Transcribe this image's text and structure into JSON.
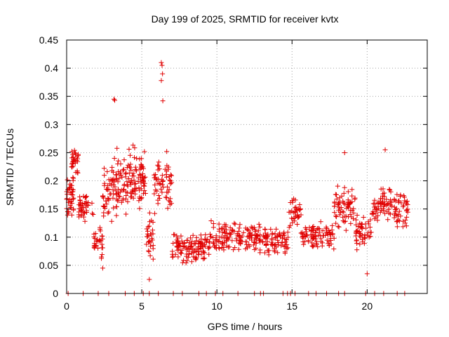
{
  "chart_data": {
    "type": "scatter",
    "title": "Day 199 of 2025, SRMTID for receiver kvtx",
    "xlabel": "GPS time / hours",
    "ylabel": "SRMTID / TECUs",
    "xlim": [
      0,
      24
    ],
    "ylim": [
      0,
      0.45
    ],
    "x_ticks": [
      0,
      5,
      10,
      15,
      20
    ],
    "x_tick_labels": [
      "0",
      "5",
      "10",
      "15",
      "20"
    ],
    "y_ticks": [
      0,
      0.05,
      0.1,
      0.15,
      0.2,
      0.25,
      0.3,
      0.35,
      0.4,
      0.45
    ],
    "y_tick_labels": [
      "0",
      "0.05",
      "0.1",
      "0.15",
      "0.2",
      "0.25",
      "0.3",
      "0.35",
      "0.4",
      "0.45"
    ],
    "grid": true,
    "marker": "+",
    "color": "#e00000",
    "series_profile": [
      {
        "x_start": 0.0,
        "x_end": 0.5,
        "center": 0.17,
        "spread": 0.05,
        "n": 40
      },
      {
        "x_start": 0.3,
        "x_end": 0.8,
        "center": 0.235,
        "spread": 0.04,
        "n": 30
      },
      {
        "x_start": 0.8,
        "x_end": 1.8,
        "center": 0.15,
        "spread": 0.04,
        "n": 45
      },
      {
        "x_start": 1.8,
        "x_end": 2.4,
        "center": 0.09,
        "spread": 0.04,
        "n": 30
      },
      {
        "x_start": 2.4,
        "x_end": 3.0,
        "center": 0.17,
        "spread": 0.06,
        "n": 35
      },
      {
        "x_start": 3.0,
        "x_end": 4.8,
        "center": 0.2,
        "spread": 0.08,
        "n": 110
      },
      {
        "x_start": 4.8,
        "x_end": 5.3,
        "center": 0.21,
        "spread": 0.08,
        "n": 40
      },
      {
        "x_start": 5.3,
        "x_end": 5.8,
        "center": 0.1,
        "spread": 0.06,
        "n": 30
      },
      {
        "x_start": 5.8,
        "x_end": 7.0,
        "center": 0.2,
        "spread": 0.07,
        "n": 60
      },
      {
        "x_start": 7.0,
        "x_end": 9.5,
        "center": 0.08,
        "spread": 0.035,
        "n": 120
      },
      {
        "x_start": 9.5,
        "x_end": 12.5,
        "center": 0.1,
        "spread": 0.035,
        "n": 120
      },
      {
        "x_start": 12.5,
        "x_end": 14.8,
        "center": 0.095,
        "spread": 0.035,
        "n": 100
      },
      {
        "x_start": 14.8,
        "x_end": 15.6,
        "center": 0.14,
        "spread": 0.04,
        "n": 35
      },
      {
        "x_start": 15.6,
        "x_end": 17.8,
        "center": 0.1,
        "spread": 0.03,
        "n": 90
      },
      {
        "x_start": 17.8,
        "x_end": 19.2,
        "center": 0.15,
        "spread": 0.05,
        "n": 70
      },
      {
        "x_start": 19.2,
        "x_end": 20.3,
        "center": 0.11,
        "spread": 0.04,
        "n": 50
      },
      {
        "x_start": 20.3,
        "x_end": 22.8,
        "center": 0.155,
        "spread": 0.045,
        "n": 110
      }
    ],
    "highlight_points": [
      {
        "x": 6.3,
        "y": 0.41
      },
      {
        "x": 6.35,
        "y": 0.405
      },
      {
        "x": 6.38,
        "y": 0.39
      },
      {
        "x": 6.3,
        "y": 0.378
      },
      {
        "x": 6.4,
        "y": 0.342
      },
      {
        "x": 3.15,
        "y": 0.345
      },
      {
        "x": 3.2,
        "y": 0.343
      },
      {
        "x": 5.5,
        "y": 0.025
      },
      {
        "x": 20.0,
        "y": 0.035
      },
      {
        "x": 2.4,
        "y": 0.045
      },
      {
        "x": 18.5,
        "y": 0.25
      },
      {
        "x": 21.2,
        "y": 0.255
      }
    ],
    "zero_points_x": [
      0.1,
      1.1,
      2.1,
      2.8,
      3.9,
      4.5,
      5.1,
      5.5,
      6.1,
      7.1,
      7.7,
      8.8,
      9.3,
      9.9,
      10.4,
      11.4,
      12.5,
      12.9,
      13.1,
      14.4,
      14.7,
      14.9,
      15.2,
      16.1,
      16.6,
      17.3,
      18.1,
      18.5,
      19.9,
      20.5,
      21.1,
      22.0,
      22.5
    ]
  }
}
